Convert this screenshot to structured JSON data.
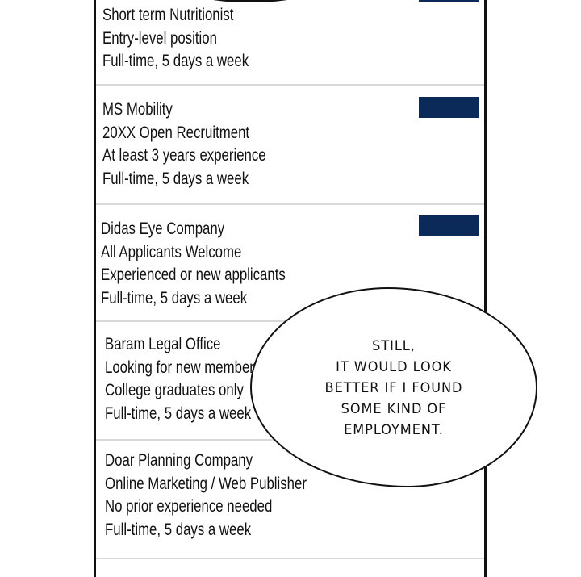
{
  "job_list": [
    {
      "lines": [
        "Short term Nutritionist",
        "Entry-level position",
        "Full-time, 5 days a week"
      ],
      "has_button": true
    },
    {
      "lines": [
        "MS Mobility",
        "20XX Open Recruitment",
        "At least 3 years experience",
        "Full-time, 5 days a week"
      ],
      "has_button": true
    },
    {
      "lines": [
        "Didas Eye Company",
        "All Applicants Welcome",
        "Experienced or new applicants",
        "Full-time, 5 days a week"
      ],
      "has_button": true
    },
    {
      "lines": [
        "Baram Legal Office",
        "Looking for new members",
        "College graduates only",
        "Full-time, 5 days a week"
      ]
    },
    {
      "lines": [
        "Doar Planning Company",
        "Online Marketing / Web Publisher",
        "No prior experience needed",
        "Full-time, 5 days a week"
      ]
    }
  ],
  "colors": {
    "button": "#0b2a5a",
    "frame": "#111111",
    "separator": "#d8d8d8"
  },
  "speech_bubble": {
    "lines": [
      "STILL,",
      "IT WOULD LOOK",
      "BETTER IF I FOUND",
      "SOME KIND OF",
      "EMPLOYMENT."
    ]
  }
}
